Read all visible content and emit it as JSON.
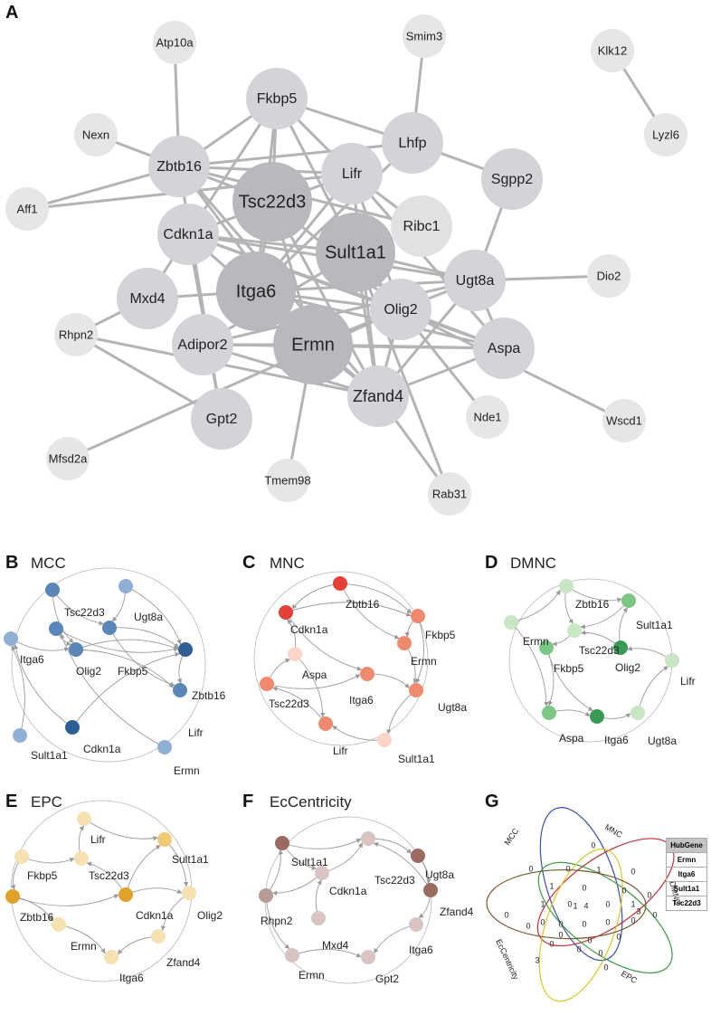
{
  "panel_a": {
    "letter": "A",
    "nodes": [
      {
        "label": "Atp10a"
      },
      {
        "label": "Smim3"
      },
      {
        "label": "Klk12"
      },
      {
        "label": "Nexn"
      },
      {
        "label": "Fkbp5"
      },
      {
        "label": "Lhfp"
      },
      {
        "label": "Lyzl6"
      },
      {
        "label": "Zbtb16"
      },
      {
        "label": "Tsc22d3"
      },
      {
        "label": "Lifr"
      },
      {
        "label": "Sgpp2"
      },
      {
        "label": "Aff1"
      },
      {
        "label": "Cdkn1a"
      },
      {
        "label": "Ribc1"
      },
      {
        "label": "Sult1a1"
      },
      {
        "label": "Mxd4"
      },
      {
        "label": "Itga6"
      },
      {
        "label": "Ugt8a"
      },
      {
        "label": "Dio2"
      },
      {
        "label": "Olig2"
      },
      {
        "label": "Rhpn2"
      },
      {
        "label": "Adipor2"
      },
      {
        "label": "Ermn"
      },
      {
        "label": "Aspa"
      },
      {
        "label": "Zfand4"
      },
      {
        "label": "Gpt2"
      },
      {
        "label": "Nde1"
      },
      {
        "label": "Wscd1"
      },
      {
        "label": "Mfsd2a"
      },
      {
        "label": "Tmem98"
      },
      {
        "label": "Rab31"
      }
    ],
    "edges": [
      [
        "Atp10a",
        "Zbtb16"
      ],
      [
        "Smim3",
        "Lhfp"
      ],
      [
        "Klk12",
        "Lyzl6"
      ],
      [
        "Nexn",
        "Zbtb16"
      ],
      [
        "Fkbp5",
        "Zbtb16"
      ],
      [
        "Fkbp5",
        "Lhfp"
      ],
      [
        "Fkbp5",
        "Tsc22d3"
      ],
      [
        "Fkbp5",
        "Lifr"
      ],
      [
        "Fkbp5",
        "Cdkn1a"
      ],
      [
        "Fkbp5",
        "Sult1a1"
      ],
      [
        "Fkbp5",
        "Itga6"
      ],
      [
        "Lhfp",
        "Sgpp2"
      ],
      [
        "Lhfp",
        "Zbtb16"
      ],
      [
        "Lhfp",
        "Itga6"
      ],
      [
        "Zbtb16",
        "Lifr"
      ],
      [
        "Zbtb16",
        "Tsc22d3"
      ],
      [
        "Zbtb16",
        "Ribc1"
      ],
      [
        "Zbtb16",
        "Gpt2"
      ],
      [
        "Zbtb16",
        "Zfand4"
      ],
      [
        "Zbtb16",
        "Ermn"
      ],
      [
        "Aff1",
        "Zbtb16"
      ],
      [
        "Aff1",
        "Lifr"
      ],
      [
        "Tsc22d3",
        "Zfand4"
      ],
      [
        "Tsc22d3",
        "Itga6"
      ],
      [
        "Tsc22d3",
        "Ermn"
      ],
      [
        "Tsc22d3",
        "Olig2"
      ],
      [
        "Lifr",
        "Cdkn1a"
      ],
      [
        "Lifr",
        "Ribc1"
      ],
      [
        "Lifr",
        "Zfand4"
      ],
      [
        "Lifr",
        "Aspa"
      ],
      [
        "Lifr",
        "Olig2"
      ],
      [
        "Lifr",
        "Itga6"
      ],
      [
        "Sgpp2",
        "Ugt8a"
      ],
      [
        "Cdkn1a",
        "Sult1a1"
      ],
      [
        "Cdkn1a",
        "Mxd4"
      ],
      [
        "Cdkn1a",
        "Ugt8a"
      ],
      [
        "Cdkn1a",
        "Olig2"
      ],
      [
        "Cdkn1a",
        "Gpt2"
      ],
      [
        "Cdkn1a",
        "Ermn"
      ],
      [
        "Cdkn1a",
        "Aspa"
      ],
      [
        "Sult1a1",
        "Zfand4"
      ],
      [
        "Sult1a1",
        "Ugt8a"
      ],
      [
        "Sult1a1",
        "Adipor2"
      ],
      [
        "Sult1a1",
        "Olig2"
      ],
      [
        "Mxd4",
        "Itga6"
      ],
      [
        "Mxd4",
        "Rhpn2"
      ],
      [
        "Itga6",
        "Olig2"
      ],
      [
        "Itga6",
        "Aspa"
      ],
      [
        "Itga6",
        "Zfand4"
      ],
      [
        "Itga6",
        "Ugt8a"
      ],
      [
        "Itga6",
        "Ermn"
      ],
      [
        "Ugt8a",
        "Dio2"
      ],
      [
        "Ugt8a",
        "Olig2"
      ],
      [
        "Ugt8a",
        "Aspa"
      ],
      [
        "Ugt8a",
        "Adipor2"
      ],
      [
        "Ugt8a",
        "Zfand4"
      ],
      [
        "Olig2",
        "Ermn"
      ],
      [
        "Olig2",
        "Aspa"
      ],
      [
        "Olig2",
        "Nde1"
      ],
      [
        "Olig2",
        "Wscd1"
      ],
      [
        "Olig2",
        "Zfand4"
      ],
      [
        "Olig2",
        "Mfsd2a"
      ],
      [
        "Rhpn2",
        "Gpt2"
      ],
      [
        "Rhpn2",
        "Zfand4"
      ],
      [
        "Adipor2",
        "Ermn"
      ],
      [
        "Adipor2",
        "Zfand4"
      ],
      [
        "Adipor2",
        "Aspa"
      ],
      [
        "Ermn",
        "Aspa"
      ],
      [
        "Ermn",
        "Zfand4"
      ],
      [
        "Ermn",
        "Tmem98"
      ],
      [
        "Aspa",
        "Zfand4"
      ],
      [
        "Zfand4",
        "Rab31"
      ],
      [
        "Sult1a1",
        "Rab31"
      ]
    ]
  },
  "panel_b": {
    "letter": "B",
    "title": "MCC",
    "labels": [
      "Tsc22d3",
      "Ugt8a",
      "Itga6",
      "Fkbp5",
      "Olig2",
      "Zbtb16",
      "Lifr",
      "Cdkn1a",
      "Sult1a1",
      "Ermn"
    ]
  },
  "panel_c": {
    "letter": "C",
    "title": "MNC",
    "labels": [
      "Zbtb16",
      "Cdkn1a",
      "Fkbp5",
      "Aspa",
      "Ermn",
      "Itga6",
      "Tsc22d3",
      "Ugt8a",
      "Lifr",
      "Sult1a1"
    ]
  },
  "panel_d": {
    "letter": "D",
    "title": "DMNC",
    "labels": [
      "Zbtb16",
      "Sult1a1",
      "Ermn",
      "Tsc22d3",
      "Olig2",
      "Fkbp5",
      "Lifr",
      "Aspa",
      "Itga6",
      "Ugt8a"
    ]
  },
  "panel_e": {
    "letter": "E",
    "title": "EPC",
    "labels": [
      "Lifr",
      "Sult1a1",
      "Fkbp5",
      "Tsc22d3",
      "Olig2",
      "Zbtb16",
      "Cdkn1a",
      "Ermn",
      "Zfand4",
      "Itga6"
    ]
  },
  "panel_f": {
    "letter": "F",
    "title": "EcCentricity",
    "labels": [
      "Sult1a1",
      "Ugt8a",
      "Tsc22d3",
      "Cdkn1a",
      "Zfand4",
      "Rhpn2",
      "Mxd4",
      "Itga6",
      "Ermn",
      "Gpt2"
    ]
  },
  "panel_g": {
    "letter": "G",
    "sets": [
      "MCC",
      "MNC",
      "DMNC",
      "EcCentricity",
      "EPC"
    ],
    "center_value": "4",
    "region_values": [
      "0",
      "0",
      "0",
      "1",
      "0",
      "1",
      "0",
      "0",
      "0",
      "1",
      "0",
      "0",
      "1",
      "3",
      "0",
      "0",
      "0",
      "0",
      "0",
      "0",
      "0",
      "0",
      "0",
      "0",
      "0",
      "0",
      "3",
      "0",
      "0",
      "1",
      "0"
    ],
    "table": {
      "header": "HubGene",
      "rows": [
        "Ermn",
        "Itga6",
        "Sult1a1",
        "Tsc22d3"
      ]
    }
  },
  "colors": {
    "edge_gray": "#b4b4b4",
    "arrow_gray": "#9a9a9a",
    "mcc": [
      "#8fb0d4",
      "#5a86b8",
      "#2f5e95"
    ],
    "mnc": [
      "#fcd5c8",
      "#f08a6e",
      "#e3413a"
    ],
    "dmnc": [
      "#c8e6c4",
      "#7dc785",
      "#3a9a55"
    ],
    "epc": [
      "#f5e2b0",
      "#efca72",
      "#e0a22a"
    ],
    "ecc": [
      "#d8c4c0",
      "#b79b95",
      "#9a6a60"
    ],
    "venn": {
      "MCC": "#3b4fb0",
      "MNC": "#c0303a",
      "DMNC": "#3a9a45",
      "EcCentricity": "#7a5a30",
      "EPC": "#d8c82a"
    }
  }
}
